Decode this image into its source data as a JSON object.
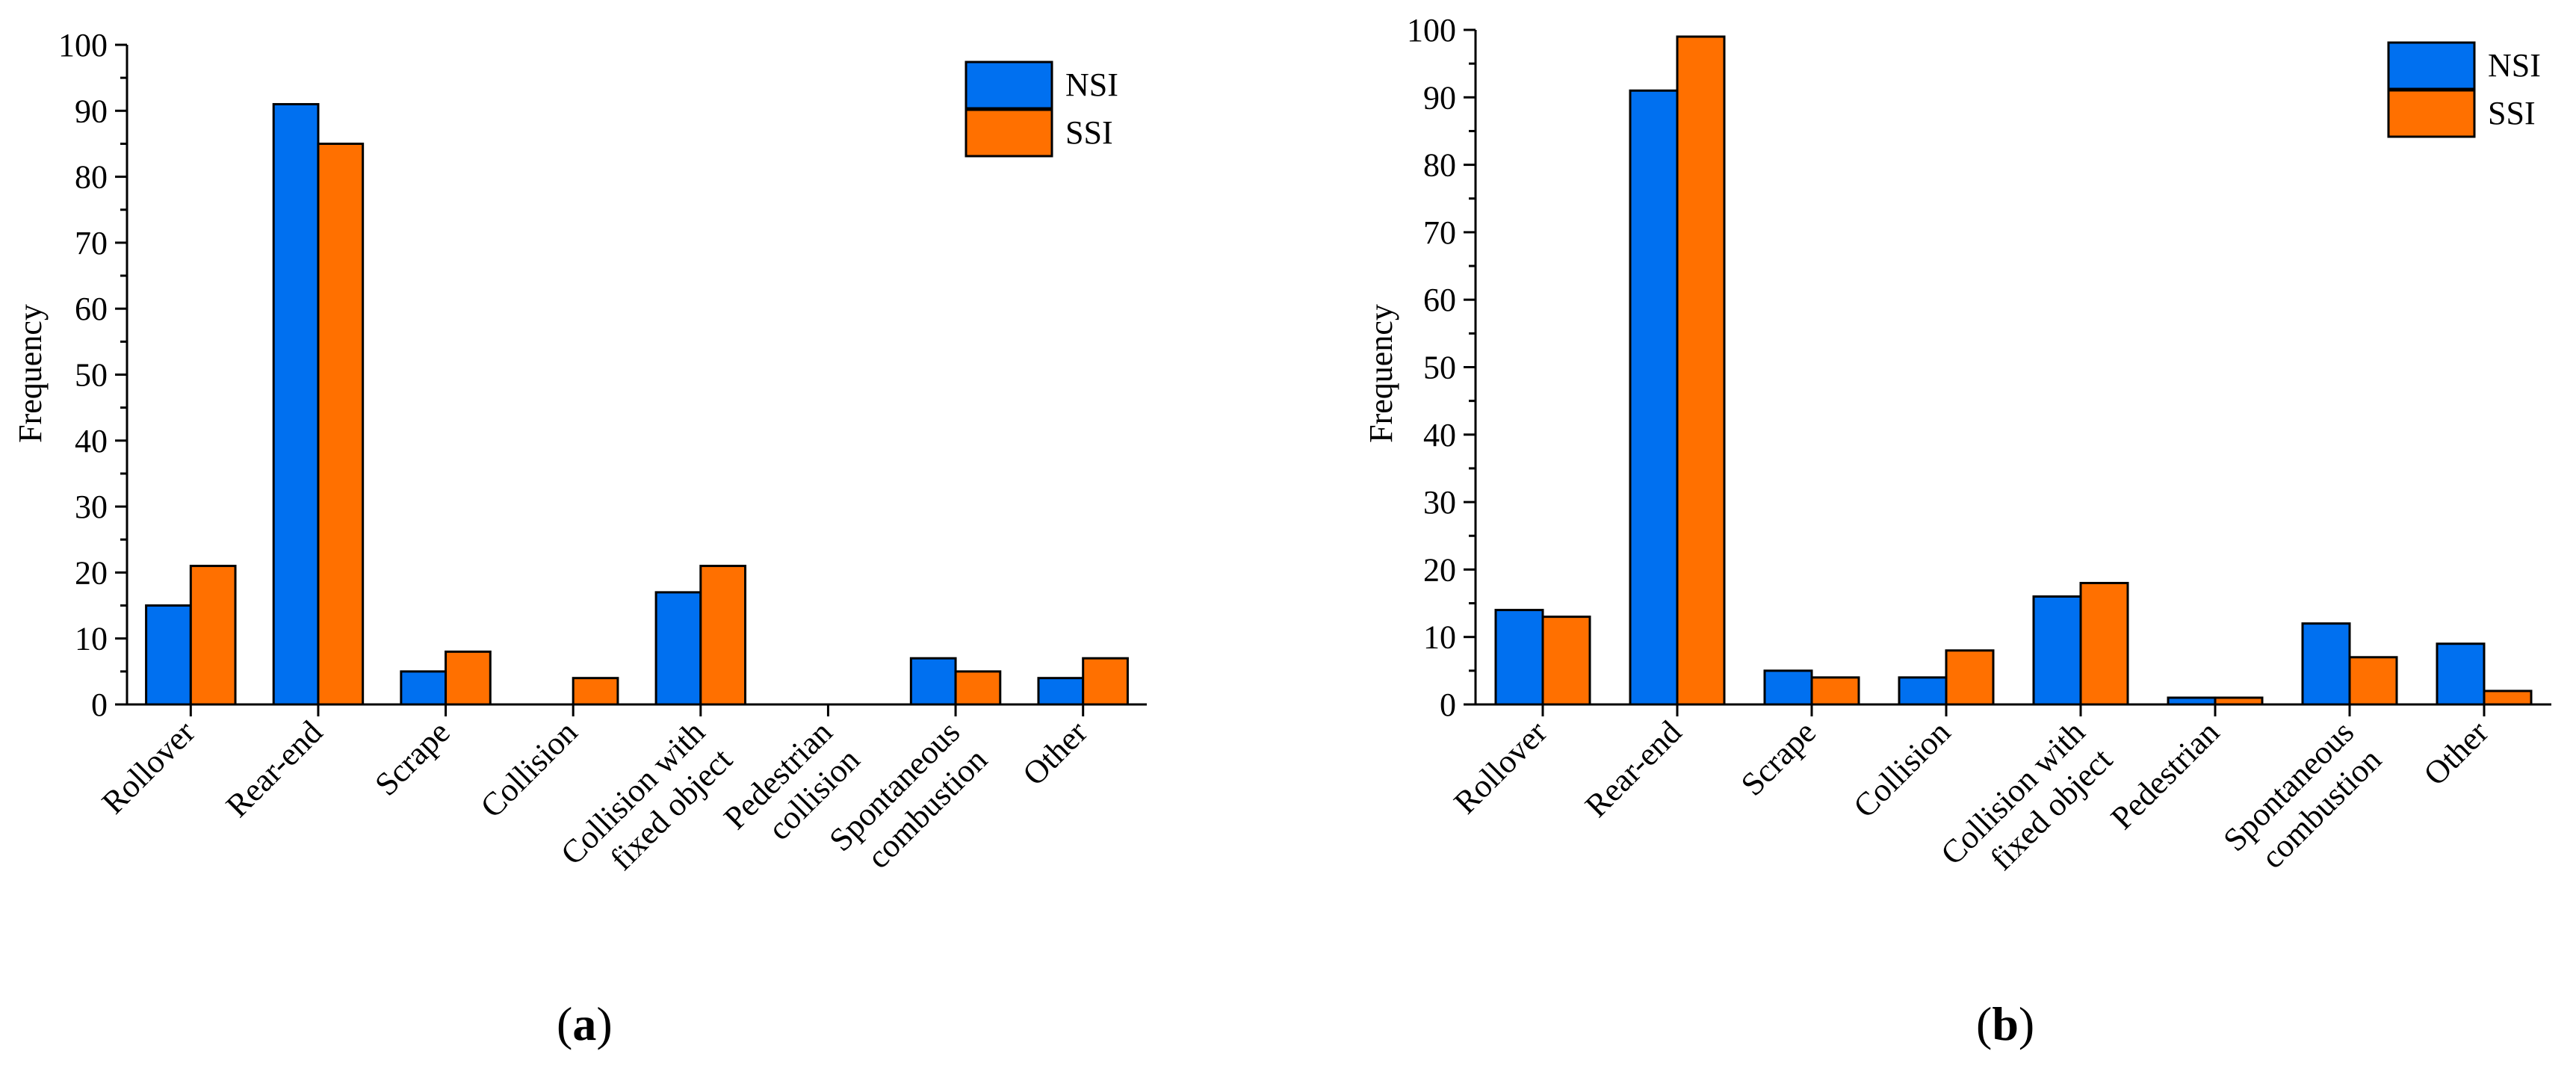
{
  "figure": {
    "panels": [
      "a",
      "b"
    ]
  },
  "chart_data": [
    {
      "type": "bar",
      "panel_label": "a",
      "title": "",
      "xlabel": "",
      "ylabel": "Frequency",
      "ylim": [
        0,
        100
      ],
      "yticks": [
        0,
        10,
        20,
        30,
        40,
        50,
        60,
        70,
        80,
        90,
        100
      ],
      "grid": false,
      "legend_position": "top-right",
      "categories": [
        [
          "Rollover"
        ],
        [
          "Rear-end"
        ],
        [
          "Scrape"
        ],
        [
          "Collision"
        ],
        [
          "Collision with",
          "fixed object"
        ],
        [
          "Pedestrian",
          "collision"
        ],
        [
          "Spontaneous",
          "combustion"
        ],
        [
          "Other"
        ]
      ],
      "series": [
        {
          "name": "NSI",
          "color": "#0070F0",
          "values": [
            15,
            91,
            5,
            0,
            17,
            0,
            7,
            4
          ]
        },
        {
          "name": "SSI",
          "color": "#FF7000",
          "values": [
            21,
            85,
            8,
            4,
            21,
            0,
            5,
            7
          ]
        }
      ]
    },
    {
      "type": "bar",
      "panel_label": "b",
      "title": "",
      "xlabel": "",
      "ylabel": "Frequency",
      "ylim": [
        0,
        100
      ],
      "yticks": [
        0,
        10,
        20,
        30,
        40,
        50,
        60,
        70,
        80,
        90,
        100
      ],
      "grid": false,
      "legend_position": "top-right",
      "categories": [
        [
          "Rollover"
        ],
        [
          "Rear-end"
        ],
        [
          "Scrape"
        ],
        [
          "Collision"
        ],
        [
          "Collision with",
          "fixed object"
        ],
        [
          "Pedestrian"
        ],
        [
          "Spontaneous",
          "combustion"
        ],
        [
          "Other"
        ]
      ],
      "series": [
        {
          "name": "NSI",
          "color": "#0070F0",
          "values": [
            14,
            91,
            5,
            4,
            16,
            1,
            12,
            9
          ]
        },
        {
          "name": "SSI",
          "color": "#FF7000",
          "values": [
            13,
            99,
            4,
            8,
            18,
            1,
            7,
            2
          ]
        }
      ]
    }
  ]
}
